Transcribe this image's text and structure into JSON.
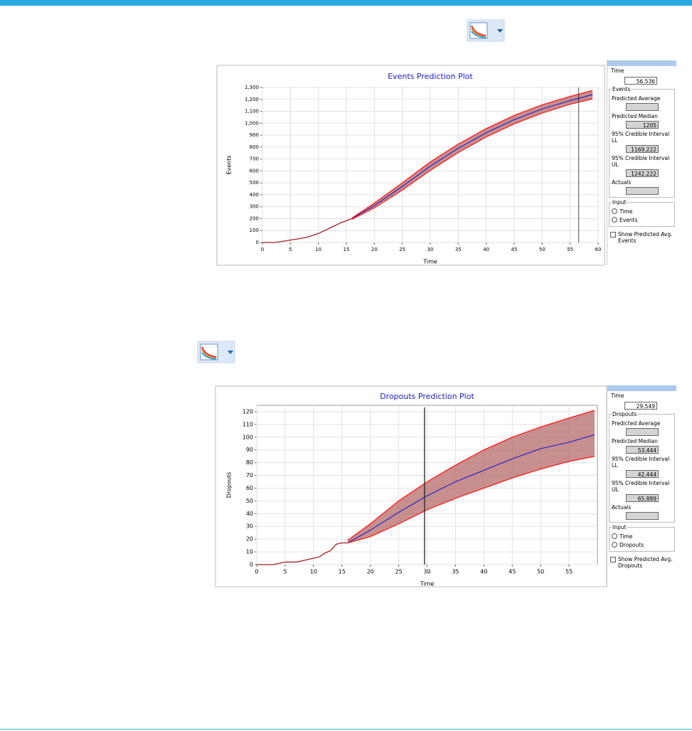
{
  "chart_data": [
    {
      "type": "line",
      "title": "Events Prediction Plot",
      "x_label": "Time",
      "y_label": "Events",
      "xlim": [
        0,
        60
      ],
      "xticks": [
        0,
        5,
        10,
        15,
        20,
        25,
        30,
        35,
        40,
        45,
        50,
        55,
        60
      ],
      "ylim": [
        0,
        1300
      ],
      "yticks": [
        0,
        100,
        200,
        300,
        400,
        500,
        600,
        700,
        800,
        900,
        {
          "value": 1000,
          "label": "1,000"
        },
        {
          "value": 1100,
          "label": "1,100"
        },
        {
          "value": 1200,
          "label": "1,200"
        },
        {
          "value": 1300,
          "label": "1,300"
        }
      ],
      "grid": true,
      "band_color": "#b56a6a",
      "series": [
        {
          "color": "#a02020",
          "x": [
            0,
            2,
            3,
            5,
            7,
            8,
            10,
            12,
            14,
            16
          ],
          "values": [
            0,
            0,
            5,
            20,
            35,
            45,
            75,
            120,
            165,
            200
          ]
        },
        {
          "color": "#3030c0",
          "x": [
            16,
            20,
            25,
            30,
            35,
            40,
            45,
            50,
            55,
            59
          ],
          "values": [
            200,
            310,
            470,
            640,
            790,
            920,
            1030,
            1120,
            1190,
            1240
          ]
        },
        {
          "color": "#ff1a1a",
          "x": [
            16,
            20,
            25,
            30,
            35,
            40,
            45,
            50,
            55,
            59
          ],
          "values": [
            195,
            290,
            440,
            605,
            755,
            885,
            995,
            1085,
            1160,
            1205
          ]
        },
        {
          "color": "#ff1a1a",
          "x": [
            16,
            20,
            25,
            30,
            35,
            40,
            45,
            50,
            55,
            59
          ],
          "values": [
            205,
            330,
            500,
            675,
            825,
            955,
            1065,
            1155,
            1225,
            1275
          ]
        }
      ]
    },
    {
      "type": "line",
      "title": "Dropouts Prediction Plot",
      "x_label": "Time",
      "y_label": "Dropouts",
      "xlim": [
        0,
        60
      ],
      "xticks": [
        0,
        5,
        10,
        15,
        20,
        25,
        30,
        35,
        40,
        45,
        50,
        55
      ],
      "ylim": [
        0,
        125
      ],
      "yticks": [
        0,
        10,
        20,
        30,
        40,
        50,
        60,
        70,
        80,
        90,
        100,
        110,
        120
      ],
      "grid": true,
      "band_color": "#b56a6a",
      "series": [
        {
          "color": "#a02020",
          "x": [
            0,
            3,
            5,
            7,
            8,
            9,
            10,
            11,
            12,
            13,
            14,
            15,
            16
          ],
          "values": [
            0,
            0,
            2,
            2,
            3,
            4,
            5,
            6,
            9,
            11,
            16,
            17,
            17
          ]
        },
        {
          "color": "#3030c0",
          "x": [
            16,
            20,
            25,
            30,
            35,
            40,
            45,
            50,
            55,
            59.5
          ],
          "values": [
            17,
            27,
            41,
            54,
            65,
            74,
            83,
            91,
            96,
            102
          ]
        },
        {
          "color": "#ff1a1a",
          "x": [
            16,
            20,
            25,
            30,
            35,
            40,
            45,
            50,
            55,
            59.5
          ],
          "values": [
            17,
            22,
            32,
            43,
            52,
            60,
            68,
            75,
            81,
            85
          ]
        },
        {
          "color": "#ff1a1a",
          "x": [
            16,
            20,
            25,
            30,
            35,
            40,
            45,
            50,
            55,
            59.5
          ],
          "values": [
            19,
            32,
            50,
            65,
            78,
            90,
            100,
            108,
            115,
            121
          ]
        }
      ]
    }
  ],
  "panels": [
    {
      "time_label": "Time",
      "time": 56.536,
      "group": "Events",
      "fields": [
        {
          "label": "Predicted Average"
        },
        {
          "label": "Predicted Median",
          "value": 1205
        },
        {
          "label": "95% Credible Interval LL",
          "value": 1169.222
        },
        {
          "label": "95% Credible Interval UL",
          "value": 1242.222
        },
        {
          "label": "Actuals"
        }
      ],
      "input_label": "Input",
      "options": [
        "Time",
        "Events"
      ],
      "checkbox": "Show Predicted Avg. Events"
    },
    {
      "time_label": "Time",
      "time": 29.549,
      "group": "Dropouts",
      "fields": [
        {
          "label": "Predicted Average"
        },
        {
          "label": "Predicted Median",
          "value": 53.444
        },
        {
          "label": "95% Credible Interval LL",
          "value": 42.444
        },
        {
          "label": "95% Credible Interval UL",
          "value": 65.889
        },
        {
          "label": "Actuals"
        }
      ],
      "input_label": "Input",
      "options": [
        "Time",
        "Dropouts"
      ],
      "checkbox": "Show Predicted Avg. Dropouts"
    }
  ]
}
